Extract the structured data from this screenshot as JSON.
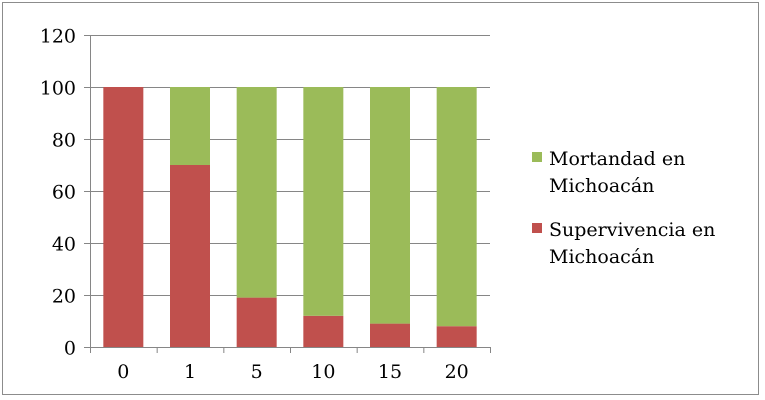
{
  "chart_data": {
    "type": "bar",
    "stacked": true,
    "categories": [
      "0",
      "1",
      "5",
      "10",
      "15",
      "20"
    ],
    "series": [
      {
        "name": "Supervivencia en Michoacán",
        "color": "#c0504d",
        "values": [
          100,
          70,
          19,
          12,
          9,
          8
        ]
      },
      {
        "name": "Mortandad en Michoacán",
        "color": "#9bbb59",
        "values": [
          0,
          30,
          81,
          88,
          91,
          92
        ]
      }
    ],
    "ylim": [
      0,
      120
    ],
    "yticks": [
      0,
      20,
      40,
      60,
      80,
      100,
      120
    ],
    "grid": true,
    "legend": {
      "position": "right",
      "items": [
        {
          "line1": "Mortandad en",
          "line2": "Michoacán",
          "color": "#9bbb59"
        },
        {
          "line1": "Supervivencia en",
          "line2": "Michoacán",
          "color": "#c0504d"
        }
      ]
    }
  }
}
